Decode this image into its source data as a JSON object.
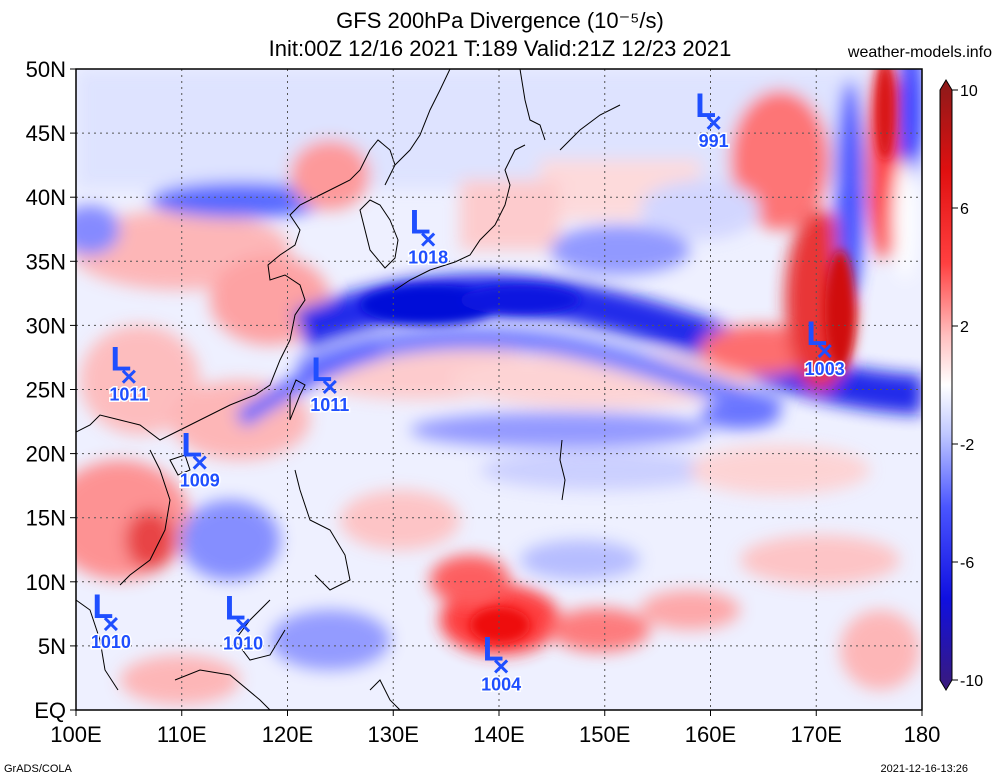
{
  "header": {
    "title_line1": "GFS 200hPa Divergence (10⁻⁵/s)",
    "title_line2": "Init:00Z 12/16 2021 T:189 Valid:21Z 12/23 2021",
    "site": "weather-models.info"
  },
  "footer": {
    "left": "GrADS/COLA",
    "right": "2021-12-16-13:26"
  },
  "map": {
    "lat_labels": [
      "EQ",
      "5N",
      "10N",
      "15N",
      "20N",
      "25N",
      "30N",
      "35N",
      "40N",
      "45N",
      "50N"
    ],
    "lon_labels": [
      "100E",
      "110E",
      "120E",
      "130E",
      "140E",
      "150E",
      "160E",
      "170E",
      "180"
    ],
    "lows": [
      {
        "lon": 105,
        "lat": 26,
        "pressure": "1011"
      },
      {
        "lon": 111.7,
        "lat": 19.3,
        "pressure": "1009"
      },
      {
        "lon": 124,
        "lat": 25.2,
        "pressure": "1011"
      },
      {
        "lon": 133.3,
        "lat": 36.7,
        "pressure": "1018"
      },
      {
        "lon": 160.3,
        "lat": 45.8,
        "pressure": "991"
      },
      {
        "lon": 170.8,
        "lat": 28,
        "pressure": "1003"
      },
      {
        "lon": 103.3,
        "lat": 6.7,
        "pressure": "1010"
      },
      {
        "lon": 115.8,
        "lat": 6.6,
        "pressure": "1010"
      },
      {
        "lon": 140.2,
        "lat": 3.4,
        "pressure": "1004"
      }
    ]
  },
  "colorbar": {
    "ticks": [
      "10",
      "6",
      "2",
      "-2",
      "-6",
      "-10"
    ]
  }
}
